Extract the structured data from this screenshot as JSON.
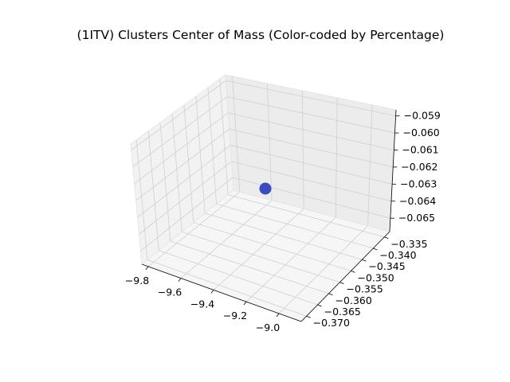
{
  "chart_data": {
    "type": "scatter",
    "title": "(1ITV) Clusters Center of Mass (Color-coded by Percentage)",
    "xlabel": "",
    "ylabel": "",
    "zlabel": "",
    "x_ticks": [
      "−9.8",
      "−9.6",
      "−9.4",
      "−9.2",
      "−9.0"
    ],
    "y_ticks": [
      "−0.335",
      "−0.340",
      "−0.345",
      "−0.350",
      "−0.355",
      "−0.360",
      "−0.365",
      "−0.370"
    ],
    "z_ticks": [
      "−0.059",
      "−0.060",
      "−0.061",
      "−0.062",
      "−0.063",
      "−0.064",
      "−0.065"
    ],
    "points": [
      {
        "x": -9.4,
        "y": -0.352,
        "z": -0.0625,
        "color": "#3b4cc0"
      }
    ],
    "grid": true,
    "projection": "3d"
  },
  "colors": {
    "pane_left": "#f2f2f2",
    "pane_back": "#ececec",
    "pane_floor": "#f6f6f6",
    "grid": "#d0d0d0",
    "axis": "#000000"
  }
}
